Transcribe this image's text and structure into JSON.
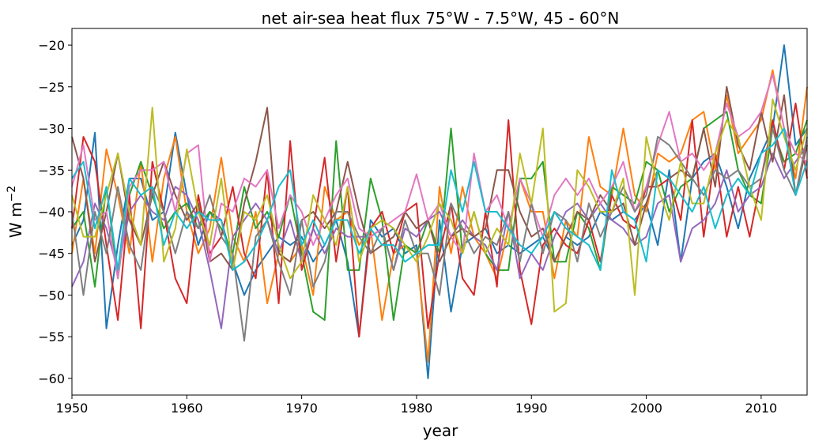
{
  "chart_data": {
    "type": "line",
    "title": "net air-sea heat flux 75°W - 7.5°W, 45 - 60°N",
    "xlabel": "year",
    "ylabel_base": "W m",
    "ylabel_exp": "−2",
    "xlim": [
      1950,
      2014
    ],
    "ylim": [
      -62,
      -18
    ],
    "xticks": [
      1950,
      1960,
      1970,
      1980,
      1990,
      2000,
      2010
    ],
    "xtick_labels": [
      "1950",
      "1960",
      "1970",
      "1980",
      "1990",
      "2000",
      "2010"
    ],
    "yticks": [
      -60,
      -55,
      -50,
      -45,
      -40,
      -35,
      -30,
      -25,
      -20
    ],
    "ytick_labels": [
      "−60",
      "−55",
      "−50",
      "−45",
      "−40",
      "−35",
      "−30",
      "−25",
      "−20"
    ],
    "grid": false,
    "x_start": 1950,
    "x_end": 2014,
    "series": [
      {
        "color": "#1f77b4",
        "values": [
          -44,
          -41,
          -30.5,
          -54,
          -44,
          -36,
          -36,
          -41,
          -40,
          -30.5,
          -38,
          -44,
          -40,
          -41,
          -46,
          -50,
          -47,
          -45,
          -43,
          -44,
          -43,
          -46,
          -44,
          -41,
          -46,
          -55,
          -41,
          -43,
          -42,
          -45,
          -44,
          -60,
          -41,
          -52,
          -44,
          -43,
          -42,
          -45,
          -44,
          -45,
          -44,
          -43,
          -46,
          -43,
          -44,
          -43,
          -40,
          -41,
          -40,
          -41,
          -39,
          -44,
          -35,
          -46,
          -36,
          -34,
          -33,
          -37,
          -42,
          -36,
          -33,
          -30,
          -20,
          -32,
          -30
        ]
      },
      {
        "color": "#ff7f0e",
        "values": [
          -45,
          -36,
          -45,
          -32.5,
          -38,
          -45,
          -34,
          -46,
          -36,
          -31,
          -40,
          -45,
          -42,
          -33.5,
          -43,
          -46,
          -40,
          -51,
          -45,
          -46,
          -44,
          -50,
          -37,
          -41,
          -40,
          -44,
          -42,
          -53,
          -45,
          -44,
          -45,
          -58,
          -37,
          -45,
          -37,
          -43,
          -45,
          -48,
          -42,
          -36,
          -40,
          -40,
          -48,
          -41,
          -43,
          -31,
          -37,
          -38,
          -30,
          -38,
          -40,
          -33,
          -34,
          -33,
          -29,
          -28,
          -35,
          -26,
          -33,
          -31,
          -29,
          -23,
          -30,
          -36,
          -25
        ]
      },
      {
        "color": "#2ca02c",
        "values": [
          -42,
          -40,
          -49,
          -37,
          -48,
          -38,
          -34,
          -38,
          -42,
          -40,
          -39,
          -42,
          -40,
          -42,
          -45,
          -37,
          -42,
          -40,
          -43,
          -38,
          -45,
          -52,
          -53,
          -31.5,
          -47,
          -47,
          -36,
          -41,
          -53,
          -44,
          -45,
          -41,
          -45,
          -30,
          -45,
          -40,
          -45,
          -47,
          -47,
          -36,
          -36,
          -34,
          -46,
          -46,
          -40,
          -42,
          -47,
          -37,
          -38,
          -39,
          -34,
          -35,
          -40,
          -37,
          -36,
          -30,
          -29,
          -28,
          -35,
          -38,
          -39,
          -30,
          -34,
          -33,
          -29
        ]
      },
      {
        "color": "#d62728",
        "values": [
          -42,
          -31,
          -34,
          -44,
          -53,
          -38,
          -54,
          -34,
          -40,
          -48,
          -51,
          -38,
          -45,
          -43,
          -37,
          -45,
          -48,
          -35,
          -51,
          -31.5,
          -47,
          -42,
          -33.5,
          -46,
          -37,
          -55,
          -42,
          -40,
          -45,
          -40,
          -39,
          -54,
          -45,
          -39,
          -48,
          -50,
          -40,
          -49,
          -29,
          -47,
          -53.5,
          -44,
          -42,
          -44,
          -45,
          -41,
          -46,
          -38,
          -41,
          -42,
          -37,
          -37,
          -36,
          -41,
          -29,
          -43,
          -33,
          -43,
          -37,
          -43,
          -36,
          -29,
          -35,
          -27,
          -36
        ]
      },
      {
        "color": "#9467bd",
        "values": [
          -49,
          -46,
          -39,
          -42,
          -47,
          -40,
          -38,
          -40,
          -41,
          -37,
          -38,
          -41,
          -47,
          -54,
          -43,
          -41,
          -39,
          -41,
          -45,
          -41,
          -46,
          -42,
          -45,
          -42,
          -43,
          -43,
          -43,
          -42,
          -47,
          -42,
          -43,
          -41,
          -40,
          -43,
          -41,
          -43,
          -44,
          -47,
          -40,
          -48,
          -45,
          -47,
          -43,
          -40,
          -39,
          -41,
          -39,
          -41,
          -42,
          -44,
          -43,
          -39,
          -38,
          -46,
          -42,
          -41,
          -39,
          -35,
          -40,
          -38,
          -37,
          -33,
          -36,
          -34,
          -32
        ]
      },
      {
        "color": "#8c564b",
        "values": [
          -31,
          -36,
          -46,
          -40,
          -33,
          -41,
          -44,
          -38,
          -34,
          -38,
          -41,
          -39,
          -46,
          -45,
          -47,
          -39,
          -34,
          -27.5,
          -45,
          -46,
          -41,
          -40,
          -42,
          -40,
          -34,
          -40,
          -45,
          -44,
          -43,
          -40,
          -42,
          -41,
          -46,
          -43,
          -42,
          -43,
          -42,
          -35,
          -35,
          -40,
          -43,
          -42,
          -46,
          -43,
          -40,
          -41,
          -38,
          -40,
          -39,
          -44,
          -39,
          -35,
          -36,
          -35,
          -36,
          -30,
          -37,
          -25,
          -32,
          -35,
          -28,
          -34,
          -26,
          -38,
          -32
        ]
      },
      {
        "color": "#e377c2",
        "values": [
          -37,
          -32,
          -41,
          -40,
          -48,
          -37,
          -35,
          -35,
          -34,
          -40,
          -33,
          -32,
          -46,
          -39,
          -40,
          -36,
          -37,
          -35,
          -42,
          -38,
          -40,
          -44,
          -41,
          -38,
          -36,
          -42,
          -43,
          -42,
          -41,
          -40,
          -35.5,
          -41,
          -39,
          -43,
          -45,
          -33,
          -40,
          -38,
          -42,
          -36,
          -39,
          -43,
          -38,
          -36,
          -38,
          -36,
          -39,
          -37,
          -34,
          -40,
          -37,
          -32,
          -28,
          -34,
          -33,
          -35,
          -33,
          -27,
          -31,
          -30,
          -28,
          -23.5,
          -30,
          -33,
          -34
        ]
      },
      {
        "color": "#7f7f7f",
        "values": [
          -40,
          -50,
          -40,
          -45,
          -37,
          -44,
          -47,
          -37,
          -40,
          -45,
          -40,
          -42,
          -38,
          -43,
          -45,
          -55.5,
          -43,
          -41,
          -46,
          -50,
          -41,
          -49,
          -46,
          -40,
          -40,
          -43,
          -45,
          -42,
          -47,
          -41,
          -45,
          -45,
          -50,
          -39,
          -42,
          -45,
          -43,
          -44,
          -40,
          -46,
          -39,
          -45,
          -40,
          -41,
          -46,
          -39,
          -43,
          -40,
          -37,
          -40,
          -38,
          -31,
          -32,
          -34,
          -36,
          -38,
          -35,
          -36,
          -35,
          -37,
          -36,
          -30,
          -35,
          -38,
          -31
        ]
      },
      {
        "color": "#bcbd22",
        "values": [
          -38,
          -43,
          -43,
          -38,
          -33,
          -40,
          -44,
          -27.5,
          -46,
          -42,
          -32.5,
          -40,
          -44,
          -36,
          -47,
          -40,
          -41,
          -38,
          -44,
          -48,
          -46,
          -38,
          -41,
          -44,
          -37,
          -46,
          -42,
          -41,
          -42,
          -44,
          -46,
          -43,
          -39,
          -41,
          -45,
          -40,
          -45,
          -42,
          -44,
          -33,
          -39,
          -30,
          -52,
          -51,
          -35,
          -37,
          -40,
          -40,
          -36,
          -50,
          -31,
          -37,
          -41,
          -34,
          -39,
          -39,
          -33,
          -29,
          -31,
          -37,
          -41,
          -26.5,
          -31,
          -35,
          -30
        ]
      },
      {
        "color": "#17becf",
        "values": [
          -36,
          -34,
          -42,
          -37,
          -47,
          -36,
          -38,
          -37,
          -44,
          -40,
          -42,
          -40,
          -41,
          -41,
          -47,
          -46,
          -44,
          -41,
          -37,
          -35,
          -44,
          -41,
          -44,
          -41,
          -41,
          -45,
          -42,
          -44,
          -44,
          -46,
          -45,
          -44,
          -44,
          -35,
          -40,
          -34,
          -40,
          -40,
          -42,
          -44,
          -45,
          -43,
          -40,
          -42,
          -43,
          -44,
          -47,
          -35,
          -40,
          -41,
          -46,
          -35,
          -36,
          -38,
          -40,
          -37,
          -42,
          -38,
          -36,
          -38,
          -33,
          -32,
          -30,
          -38,
          -34
        ]
      }
    ]
  }
}
